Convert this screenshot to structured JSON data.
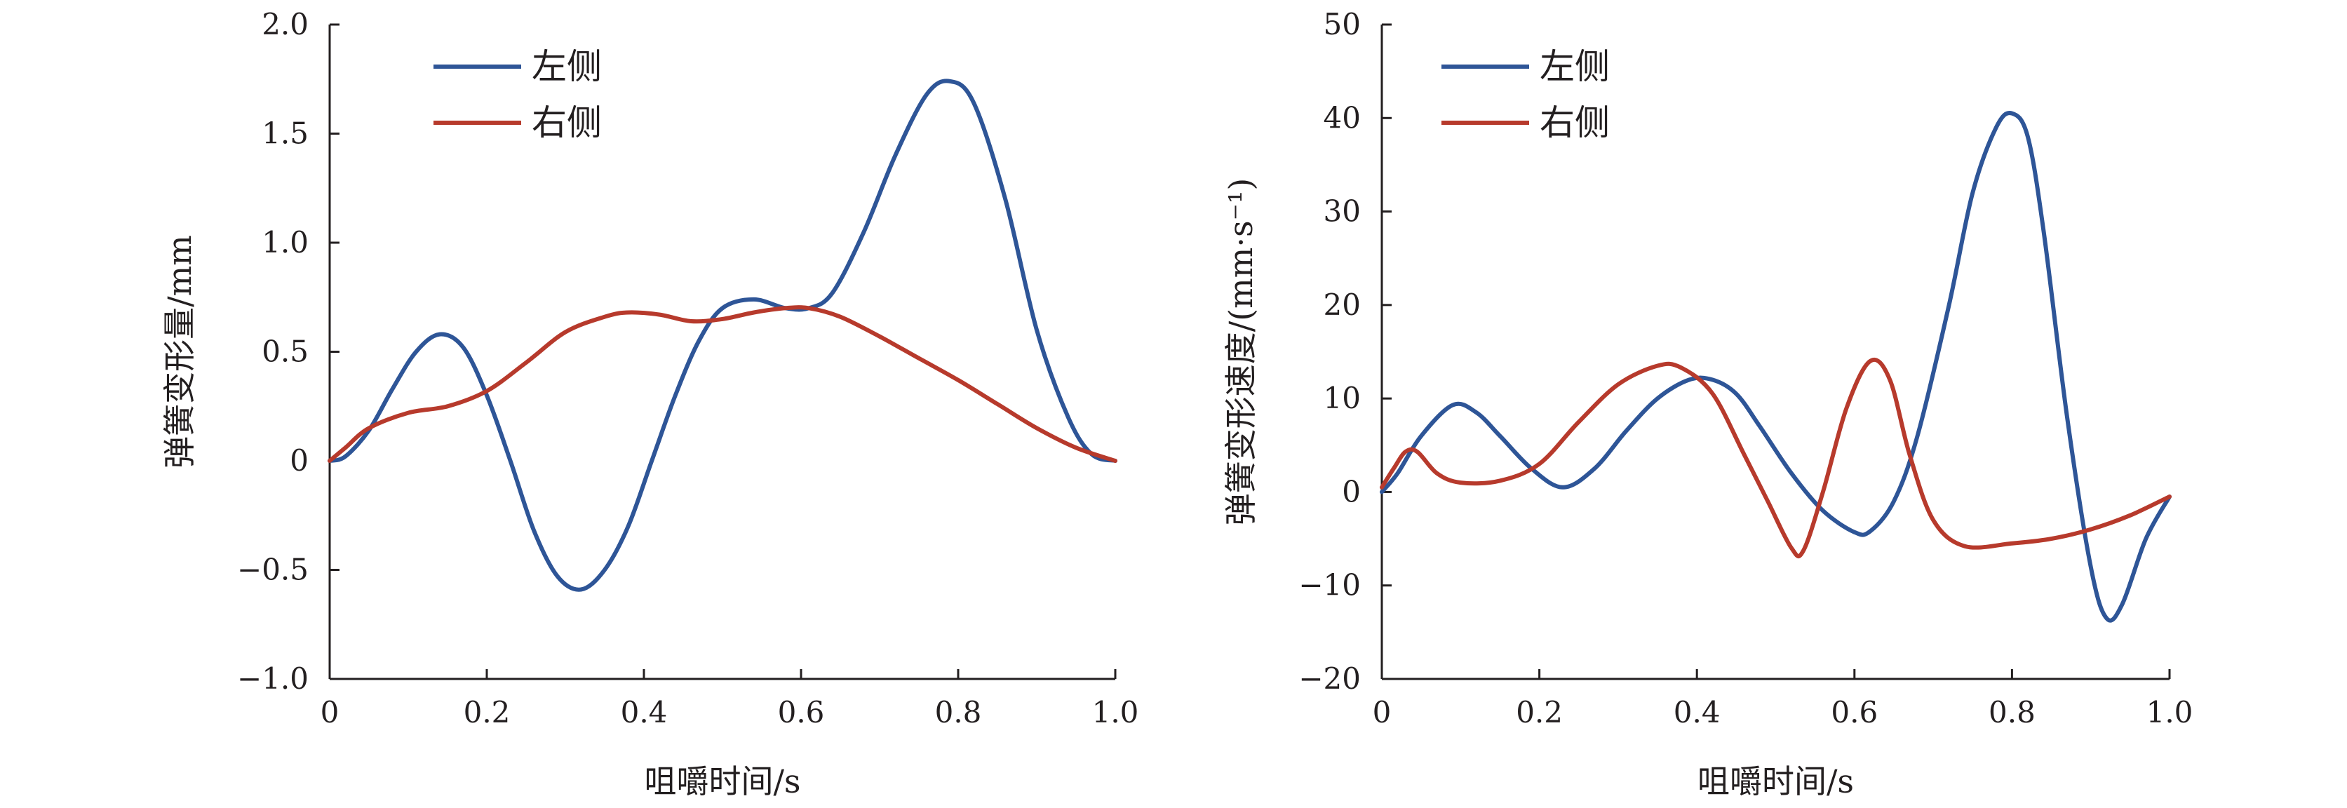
{
  "chart_data": [
    {
      "type": "line",
      "xlabel": "咀嚼时间/s",
      "ylabel": "弹簧变形量/mm",
      "xlim": [
        0,
        1.0
      ],
      "ylim": [
        -1.0,
        2.0
      ],
      "xticks": [
        0,
        0.2,
        0.4,
        0.6,
        0.8,
        1.0
      ],
      "xtick_labels": [
        "0",
        "0.2",
        "0.4",
        "0.6",
        "0.8",
        "1.0"
      ],
      "yticks": [
        -1.0,
        -0.5,
        0,
        0.5,
        1.0,
        1.5,
        2.0
      ],
      "ytick_labels": [
        "−1.0",
        "−0.5",
        "0",
        "0.5",
        "1.0",
        "1.5",
        "2.0"
      ],
      "grid": false,
      "legend": "top-left",
      "series": [
        {
          "name": "左侧",
          "color": "#2e5597",
          "x": [
            0,
            0.02,
            0.05,
            0.08,
            0.11,
            0.14,
            0.17,
            0.2,
            0.23,
            0.26,
            0.29,
            0.32,
            0.35,
            0.38,
            0.41,
            0.44,
            0.47,
            0.5,
            0.54,
            0.58,
            0.61,
            0.64,
            0.68,
            0.72,
            0.76,
            0.79,
            0.82,
            0.86,
            0.9,
            0.94,
            0.97,
            1.0
          ],
          "y": [
            0,
            0.02,
            0.14,
            0.33,
            0.5,
            0.58,
            0.52,
            0.3,
            0.0,
            -0.32,
            -0.53,
            -0.59,
            -0.5,
            -0.3,
            0.0,
            0.3,
            0.55,
            0.7,
            0.74,
            0.7,
            0.7,
            0.77,
            1.05,
            1.4,
            1.68,
            1.74,
            1.64,
            1.2,
            0.6,
            0.2,
            0.03,
            0
          ]
        },
        {
          "name": "右侧",
          "color": "#b73a2c",
          "x": [
            0,
            0.02,
            0.05,
            0.1,
            0.15,
            0.2,
            0.25,
            0.3,
            0.35,
            0.38,
            0.42,
            0.46,
            0.5,
            0.54,
            0.58,
            0.61,
            0.65,
            0.7,
            0.75,
            0.8,
            0.85,
            0.9,
            0.95,
            1.0
          ],
          "y": [
            0,
            0.06,
            0.15,
            0.22,
            0.25,
            0.32,
            0.45,
            0.59,
            0.66,
            0.68,
            0.67,
            0.64,
            0.65,
            0.68,
            0.7,
            0.7,
            0.66,
            0.57,
            0.47,
            0.37,
            0.26,
            0.15,
            0.06,
            0
          ]
        }
      ]
    },
    {
      "type": "line",
      "xlabel": "咀嚼时间/s",
      "ylabel": "弹簧变形速度/(mm·s⁻¹)",
      "xlim": [
        0,
        1.0
      ],
      "ylim": [
        -20,
        50
      ],
      "xticks": [
        0,
        0.2,
        0.4,
        0.6,
        0.8,
        1.0
      ],
      "xtick_labels": [
        "0",
        "0.2",
        "0.4",
        "0.6",
        "0.8",
        "1.0"
      ],
      "yticks": [
        -20,
        -10,
        0,
        10,
        20,
        30,
        40,
        50
      ],
      "ytick_labels": [
        "−20",
        "−10",
        "0",
        "10",
        "20",
        "30",
        "40",
        "50"
      ],
      "grid": false,
      "legend": "top-left",
      "series": [
        {
          "name": "左侧",
          "color": "#2e5597",
          "x": [
            0,
            0.02,
            0.05,
            0.09,
            0.12,
            0.15,
            0.19,
            0.23,
            0.27,
            0.31,
            0.35,
            0.39,
            0.42,
            0.45,
            0.48,
            0.52,
            0.56,
            0.6,
            0.62,
            0.65,
            0.68,
            0.72,
            0.75,
            0.78,
            0.8,
            0.82,
            0.84,
            0.87,
            0.9,
            0.92,
            0.94,
            0.97,
            1.0
          ],
          "y": [
            0,
            2,
            6,
            9.3,
            8.5,
            6,
            2.5,
            0.5,
            2.5,
            6.5,
            10,
            12,
            12,
            10.5,
            7,
            2,
            -2,
            -4.3,
            -4.2,
            -1,
            6,
            20,
            32,
            39,
            40.5,
            38,
            28,
            8,
            -8,
            -13.5,
            -12,
            -5,
            -0.5
          ]
        },
        {
          "name": "右侧",
          "color": "#b73a2c",
          "x": [
            0,
            0.015,
            0.03,
            0.045,
            0.07,
            0.1,
            0.15,
            0.2,
            0.25,
            0.3,
            0.35,
            0.38,
            0.42,
            0.46,
            0.49,
            0.52,
            0.535,
            0.56,
            0.59,
            0.62,
            0.645,
            0.67,
            0.7,
            0.74,
            0.8,
            0.85,
            0.9,
            0.95,
            1.0
          ],
          "y": [
            0.5,
            2.5,
            4.3,
            4.3,
            2,
            1,
            1.2,
            3,
            7.5,
            11.5,
            13.5,
            13.3,
            10.5,
            4,
            -1,
            -6,
            -6.3,
            0,
            9,
            14,
            12,
            4,
            -3,
            -5.8,
            -5.5,
            -5,
            -4,
            -2.5,
            -0.5
          ]
        }
      ]
    }
  ]
}
